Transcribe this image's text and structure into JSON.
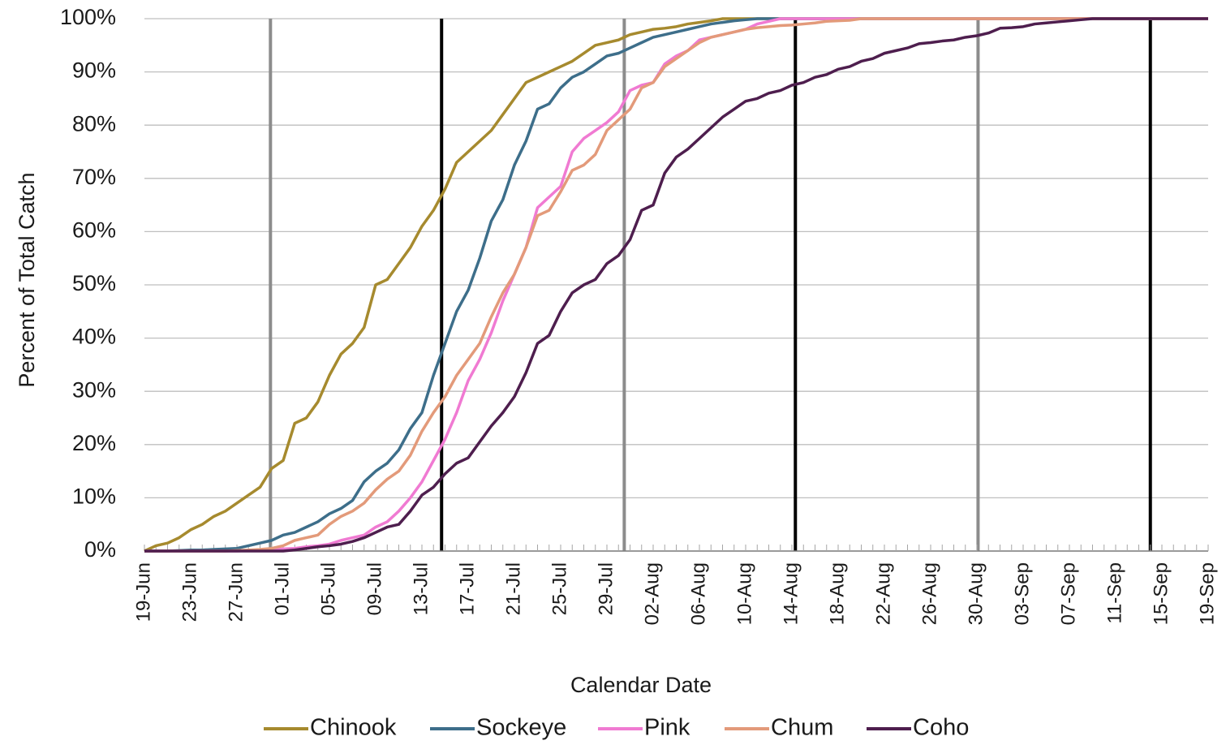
{
  "chart_data": {
    "type": "line",
    "y_label": "Percent of Total Catch",
    "x_label": "Calendar Date",
    "categories": [
      "19-Jun",
      null,
      null,
      null,
      "23-Jun",
      null,
      null,
      null,
      "27-Jun",
      null,
      null,
      null,
      "01-Jul",
      null,
      null,
      null,
      "05-Jul",
      null,
      null,
      null,
      "09-Jul",
      null,
      null,
      null,
      "13-Jul",
      null,
      null,
      null,
      "17-Jul",
      null,
      null,
      null,
      "21-Jul",
      null,
      null,
      null,
      "25-Jul",
      null,
      null,
      null,
      "29-Jul",
      null,
      null,
      null,
      "02-Aug",
      null,
      null,
      null,
      "06-Aug",
      null,
      null,
      null,
      "10-Aug",
      null,
      null,
      null,
      "14-Aug",
      null,
      null,
      null,
      "18-Aug",
      null,
      null,
      null,
      "22-Aug",
      null,
      null,
      null,
      "26-Aug",
      null,
      null,
      null,
      "30-Aug",
      null,
      null,
      null,
      "03-Sep",
      null,
      null,
      null,
      "07-Sep",
      null,
      null,
      null,
      "11-Sep",
      null,
      null,
      null,
      "15-Sep",
      null,
      null,
      null,
      "19-Sep"
    ],
    "ylim": [
      0,
      100
    ],
    "yticks": [
      {
        "value": 0,
        "label": "0%"
      },
      {
        "value": 10,
        "label": "10%"
      },
      {
        "value": 20,
        "label": "20%"
      },
      {
        "value": 30,
        "label": "30%"
      },
      {
        "value": 40,
        "label": "40%"
      },
      {
        "value": 50,
        "label": "50%"
      },
      {
        "value": 60,
        "label": "60%"
      },
      {
        "value": 70,
        "label": "70%"
      },
      {
        "value": 80,
        "label": "80%"
      },
      {
        "value": 90,
        "label": "90%"
      },
      {
        "value": 100,
        "label": "100%"
      }
    ],
    "grid": true,
    "legend": "bottom",
    "series": [
      {
        "name": "Chinook",
        "color": "#a68a2e",
        "values": [
          0,
          1,
          1.5,
          2.5,
          4,
          5,
          6.5,
          7.5,
          9,
          10.5,
          12,
          15.5,
          17,
          24,
          25,
          28,
          33,
          37,
          39,
          42,
          50,
          51,
          54,
          57,
          61,
          64,
          68,
          73,
          75,
          77,
          79,
          82,
          85,
          88,
          89,
          90,
          91,
          92,
          93.5,
          95,
          95.5,
          96,
          97,
          97.5,
          98,
          98.2,
          98.5,
          99,
          99.3,
          99.6,
          100,
          100,
          100,
          100,
          100,
          100,
          100,
          100,
          100,
          100,
          100,
          100,
          100,
          100,
          100,
          100,
          100,
          100,
          100,
          100,
          100,
          100,
          100,
          100,
          100,
          100,
          100,
          100,
          100,
          100,
          100,
          100,
          100,
          100,
          100,
          100,
          100,
          100,
          100,
          100,
          100,
          100,
          100
        ]
      },
      {
        "name": "Sockeye",
        "color": "#3d6e8a",
        "values": [
          0,
          0,
          0,
          0.1,
          0.2,
          0.2,
          0.3,
          0.4,
          0.5,
          1,
          1.5,
          2,
          3,
          3.5,
          4.5,
          5.5,
          7,
          8,
          9.5,
          13,
          15,
          16.5,
          19,
          23,
          26,
          33,
          39,
          45,
          49,
          55,
          62,
          66,
          72.5,
          77,
          83,
          84,
          87,
          89,
          90,
          91.5,
          93,
          93.5,
          94.5,
          95.5,
          96.5,
          97,
          97.5,
          98,
          98.5,
          99,
          99.3,
          99.6,
          99.8,
          100,
          100,
          100,
          100,
          100,
          100,
          100,
          100,
          100,
          100,
          100,
          100,
          100,
          100,
          100,
          100,
          100,
          100,
          100,
          100,
          100,
          100,
          100,
          100,
          100,
          100,
          100,
          100,
          100,
          100,
          100,
          100,
          100,
          100,
          100,
          100,
          100,
          100,
          100,
          100
        ]
      },
      {
        "name": "Pink",
        "color": "#f07ad2",
        "values": [
          0,
          0,
          0,
          0,
          0,
          0,
          0,
          0,
          0,
          0.1,
          0.2,
          0.3,
          0.4,
          0.5,
          0.8,
          1,
          1.3,
          2,
          2.5,
          3,
          4.5,
          5.5,
          7.5,
          10,
          13,
          17,
          21,
          26,
          32,
          36,
          41,
          47,
          52,
          57,
          64.5,
          66.5,
          68.5,
          75,
          77.5,
          79,
          80.5,
          82.5,
          86.5,
          87.5,
          88,
          91.5,
          93,
          94,
          96,
          96.5,
          97,
          97.5,
          98,
          99,
          99.5,
          100,
          100,
          100,
          100,
          100,
          100,
          100,
          100,
          100,
          100,
          100,
          100,
          100,
          100,
          100,
          100,
          100,
          100,
          100,
          100,
          100,
          100,
          100,
          100,
          100,
          100,
          100,
          100,
          100,
          100,
          100,
          100,
          100,
          100,
          100,
          100,
          100,
          100
        ]
      },
      {
        "name": "Chum",
        "color": "#e39a7a",
        "values": [
          0,
          0,
          0,
          0,
          0,
          0,
          0,
          0,
          0.1,
          0.2,
          0.3,
          0.5,
          1,
          2,
          2.5,
          3,
          5,
          6.5,
          7.5,
          9,
          11.5,
          13.5,
          15,
          18,
          22.5,
          26,
          29,
          33,
          36,
          39,
          44,
          48.5,
          52,
          57,
          63,
          64,
          67.5,
          71.5,
          72.5,
          74.5,
          79,
          81,
          83,
          87,
          88,
          91,
          92.5,
          94,
          95.5,
          96.5,
          97,
          97.5,
          98,
          98.3,
          98.5,
          98.7,
          98.8,
          99,
          99.2,
          99.5,
          99.6,
          99.7,
          100,
          100,
          100,
          100,
          100,
          100,
          100,
          100,
          100,
          100,
          100,
          100,
          100,
          100,
          100,
          100,
          100,
          100,
          100,
          100,
          100,
          100,
          100,
          100,
          100,
          100,
          100,
          100,
          100,
          100,
          100
        ]
      },
      {
        "name": "Coho",
        "color": "#4e1e4e",
        "values": [
          0,
          0,
          0,
          0,
          0,
          0,
          0,
          0,
          0,
          0,
          0,
          0,
          0,
          0.2,
          0.5,
          0.8,
          1,
          1.3,
          1.8,
          2.5,
          3.5,
          4.5,
          5,
          7.5,
          10.5,
          12,
          14.5,
          16.5,
          17.5,
          20.5,
          23.5,
          26,
          29,
          33.5,
          39,
          40.5,
          45,
          48.5,
          50,
          51,
          54,
          55.5,
          58.5,
          64,
          65,
          71,
          74,
          75.5,
          77.5,
          79.5,
          81.5,
          83,
          84.5,
          85,
          86,
          86.5,
          87.5,
          88,
          89,
          89.5,
          90.5,
          91,
          92,
          92.5,
          93.5,
          94,
          94.5,
          95.3,
          95.5,
          95.8,
          96,
          96.5,
          96.8,
          97.3,
          98.2,
          98.3,
          98.5,
          99,
          99.2,
          99.4,
          99.6,
          99.8,
          100,
          100,
          100,
          100,
          100,
          100,
          100,
          100,
          100,
          100,
          100
        ]
      }
    ]
  }
}
